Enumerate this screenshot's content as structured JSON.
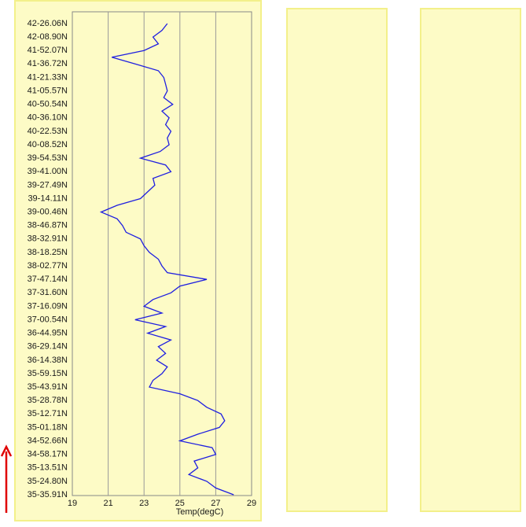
{
  "chart_data": {
    "type": "line",
    "orientation": "horizontal",
    "xlabel": "Temp(degC)",
    "categories": [
      "42-26.06N",
      null,
      "42-08.90N",
      null,
      "41-52.07N",
      null,
      "41-36.72N",
      null,
      "41-21.33N",
      null,
      "41-05.57N",
      null,
      "40-50.54N",
      null,
      "40-36.10N",
      null,
      "40-22.53N",
      null,
      "40-08.52N",
      null,
      "39-54.53N",
      null,
      "39-41.00N",
      null,
      "39-27.49N",
      null,
      "39-14.11N",
      null,
      "39-00.46N",
      null,
      "38-46.87N",
      null,
      "38-32.91N",
      null,
      "38-18.25N",
      null,
      "38-02.77N",
      null,
      "37-47.14N",
      null,
      "37-31.60N",
      null,
      "37-16.09N",
      null,
      "37-00.54N",
      null,
      "36-44.95N",
      null,
      "36-29.14N",
      null,
      "36-14.38N",
      null,
      "35-59.15N",
      null,
      "35-43.91N",
      null,
      "35-28.78N",
      null,
      "35-12.71N",
      null,
      "35-01.18N",
      null,
      "34-52.66N",
      null,
      "34-58.17N",
      null,
      "35-13.51N",
      null,
      "35-24.80N",
      null,
      "35-35.91N"
    ],
    "series": [
      {
        "color": "#1f1fe0",
        "values": [
          24.3,
          24.0,
          23.5,
          23.8,
          23.0,
          21.2,
          22.5,
          23.8,
          24.1,
          24.2,
          24.3,
          24.1,
          24.6,
          24.0,
          24.4,
          24.2,
          24.5,
          24.3,
          24.4,
          23.9,
          22.8,
          24.2,
          24.5,
          23.5,
          23.6,
          23.2,
          22.8,
          21.5,
          20.6,
          21.5,
          21.8,
          22.0,
          22.8,
          23.0,
          23.3,
          23.8,
          24.0,
          24.3,
          26.5,
          25.0,
          24.5,
          23.5,
          23.0,
          24.0,
          22.5,
          24.2,
          23.2,
          24.5,
          23.8,
          24.2,
          23.7,
          24.3,
          24.0,
          23.5,
          23.3,
          25.0,
          26.0,
          26.5,
          27.3,
          27.5,
          27.2,
          26.0,
          25.0,
          26.8,
          27.0,
          25.8,
          26.0,
          25.5,
          26.5,
          27.0,
          28.0
        ]
      }
    ],
    "xlim": [
      19,
      29
    ],
    "xticks": [
      19,
      21,
      23,
      25,
      27,
      29
    ],
    "grid": true
  }
}
